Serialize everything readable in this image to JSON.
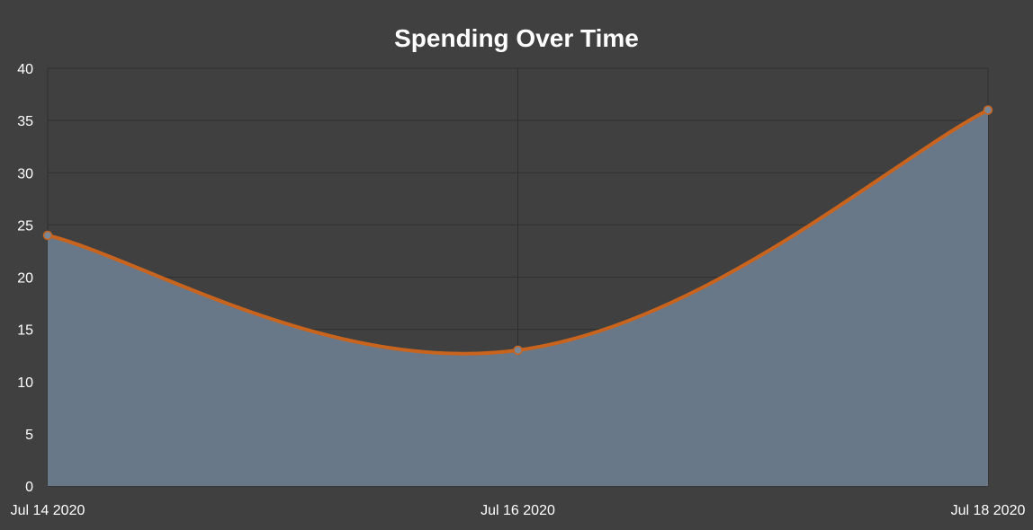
{
  "chart_data": {
    "type": "area",
    "title": "Spending Over Time",
    "xlabel": "",
    "ylabel": "",
    "x": [
      "Jul 14 2020",
      "Jul 16 2020",
      "Jul 18 2020"
    ],
    "y_ticks": [
      "0",
      "5",
      "10",
      "15",
      "20",
      "25",
      "30",
      "35",
      "40"
    ],
    "ylim": [
      0,
      40
    ],
    "grid": true,
    "series": [
      {
        "values": [
          24,
          13,
          36
        ]
      }
    ],
    "colors": {
      "background": "#404040",
      "grid": "#2f2f2f",
      "fill": "#687889",
      "line": "#c8641e",
      "point": "#7a8796",
      "text": "#ffffff"
    }
  }
}
